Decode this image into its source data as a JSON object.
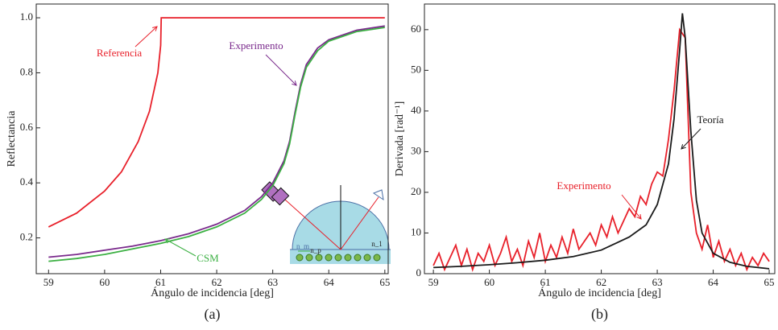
{
  "chart_data": [
    {
      "type": "line",
      "panel_label": "(a)",
      "x_label": "Ángulo de incidencia [deg]",
      "y_label": "Reflectancia",
      "xlim": [
        58.78,
        65.06
      ],
      "xticks": [
        59,
        60,
        61,
        62,
        63,
        64,
        65
      ],
      "ylim": [
        0.07,
        1.05
      ],
      "yticks": [
        0.2,
        0.4,
        0.6,
        0.8,
        {
          "value": 1,
          "label": "1.0"
        }
      ],
      "annotations": [
        "Referencia",
        "Experimento",
        "CSM",
        "n_p",
        "n_m",
        "n_1"
      ],
      "series": [
        {
          "name": "Referencia",
          "color": "#e8202a",
          "x": [
            59,
            59.5,
            60,
            60.3,
            60.6,
            60.8,
            60.95,
            61,
            61.01,
            65
          ],
          "values": [
            0.24,
            0.29,
            0.37,
            0.44,
            0.55,
            0.66,
            0.8,
            0.9,
            1.0,
            1.0
          ]
        },
        {
          "name": "Experimento",
          "color": "#7a2a8c",
          "x": [
            59,
            59.5,
            60,
            60.5,
            61,
            61.5,
            62,
            62.5,
            62.8,
            63,
            63.2,
            63.3,
            63.4,
            63.5,
            63.6,
            63.8,
            64,
            64.5,
            65
          ],
          "values": [
            0.13,
            0.14,
            0.155,
            0.17,
            0.19,
            0.215,
            0.25,
            0.3,
            0.35,
            0.4,
            0.48,
            0.55,
            0.66,
            0.76,
            0.83,
            0.89,
            0.92,
            0.955,
            0.97
          ]
        },
        {
          "name": "CSM",
          "color": "#3cb043",
          "x": [
            59,
            59.5,
            60,
            60.5,
            61,
            61.5,
            62,
            62.5,
            62.8,
            63,
            63.2,
            63.3,
            63.4,
            63.5,
            63.6,
            63.8,
            64,
            64.5,
            65
          ],
          "values": [
            0.115,
            0.125,
            0.14,
            0.16,
            0.18,
            0.205,
            0.24,
            0.29,
            0.34,
            0.39,
            0.47,
            0.54,
            0.65,
            0.75,
            0.82,
            0.88,
            0.915,
            0.95,
            0.965
          ]
        }
      ]
    },
    {
      "type": "line",
      "panel_label": "(b)",
      "x_label": "Ángulo de incidencia [deg]",
      "y_label": "Derivada [rad⁻¹]",
      "xlim": [
        58.84,
        65.1
      ],
      "xticks": [
        59,
        60,
        61,
        62,
        63,
        64,
        65
      ],
      "ylim": [
        0,
        66.3
      ],
      "yticks": [
        0,
        10,
        20,
        30,
        40,
        50,
        60
      ],
      "annotations": [
        "Teoría",
        "Experimento"
      ],
      "series": [
        {
          "name": "Experimento",
          "color": "#e8202a",
          "x": [
            59.0,
            59.1,
            59.2,
            59.3,
            59.4,
            59.5,
            59.6,
            59.7,
            59.8,
            59.9,
            60.0,
            60.1,
            60.2,
            60.3,
            60.4,
            60.5,
            60.6,
            60.7,
            60.8,
            60.9,
            61.0,
            61.1,
            61.2,
            61.3,
            61.4,
            61.5,
            61.6,
            61.7,
            61.8,
            61.9,
            62.0,
            62.1,
            62.2,
            62.3,
            62.4,
            62.5,
            62.6,
            62.7,
            62.8,
            62.9,
            63.0,
            63.1,
            63.2,
            63.3,
            63.4,
            63.5,
            63.6,
            63.7,
            63.8,
            63.9,
            64.0,
            64.1,
            64.2,
            64.3,
            64.4,
            64.5,
            64.6,
            64.7,
            64.8,
            64.9,
            65.0
          ],
          "values": [
            2,
            5,
            1,
            4,
            7,
            2,
            6,
            1,
            5,
            3,
            7,
            2,
            5,
            9,
            3,
            6,
            2,
            8,
            4,
            10,
            3,
            7,
            4,
            9,
            5,
            11,
            6,
            8,
            10,
            7,
            12,
            9,
            14,
            10,
            13,
            16,
            14,
            19,
            17,
            22,
            25,
            24,
            33,
            45,
            60,
            58,
            20,
            10,
            6,
            12,
            4,
            8,
            3,
            6,
            2,
            5,
            1,
            4,
            2,
            5,
            3
          ]
        },
        {
          "name": "Teoría",
          "color": "#1a1a1a",
          "x": [
            59,
            59.5,
            60,
            60.5,
            61,
            61.5,
            62,
            62.5,
            62.8,
            63,
            63.2,
            63.3,
            63.4,
            63.45,
            63.5,
            63.6,
            63.7,
            63.8,
            64,
            64.3,
            64.6,
            65
          ],
          "values": [
            1.5,
            1.8,
            2.2,
            2.7,
            3.3,
            4.2,
            5.8,
            9,
            12,
            17,
            27,
            38,
            55,
            64,
            58,
            35,
            18,
            10,
            5,
            2.8,
            1.8,
            1.2
          ]
        }
      ]
    }
  ]
}
